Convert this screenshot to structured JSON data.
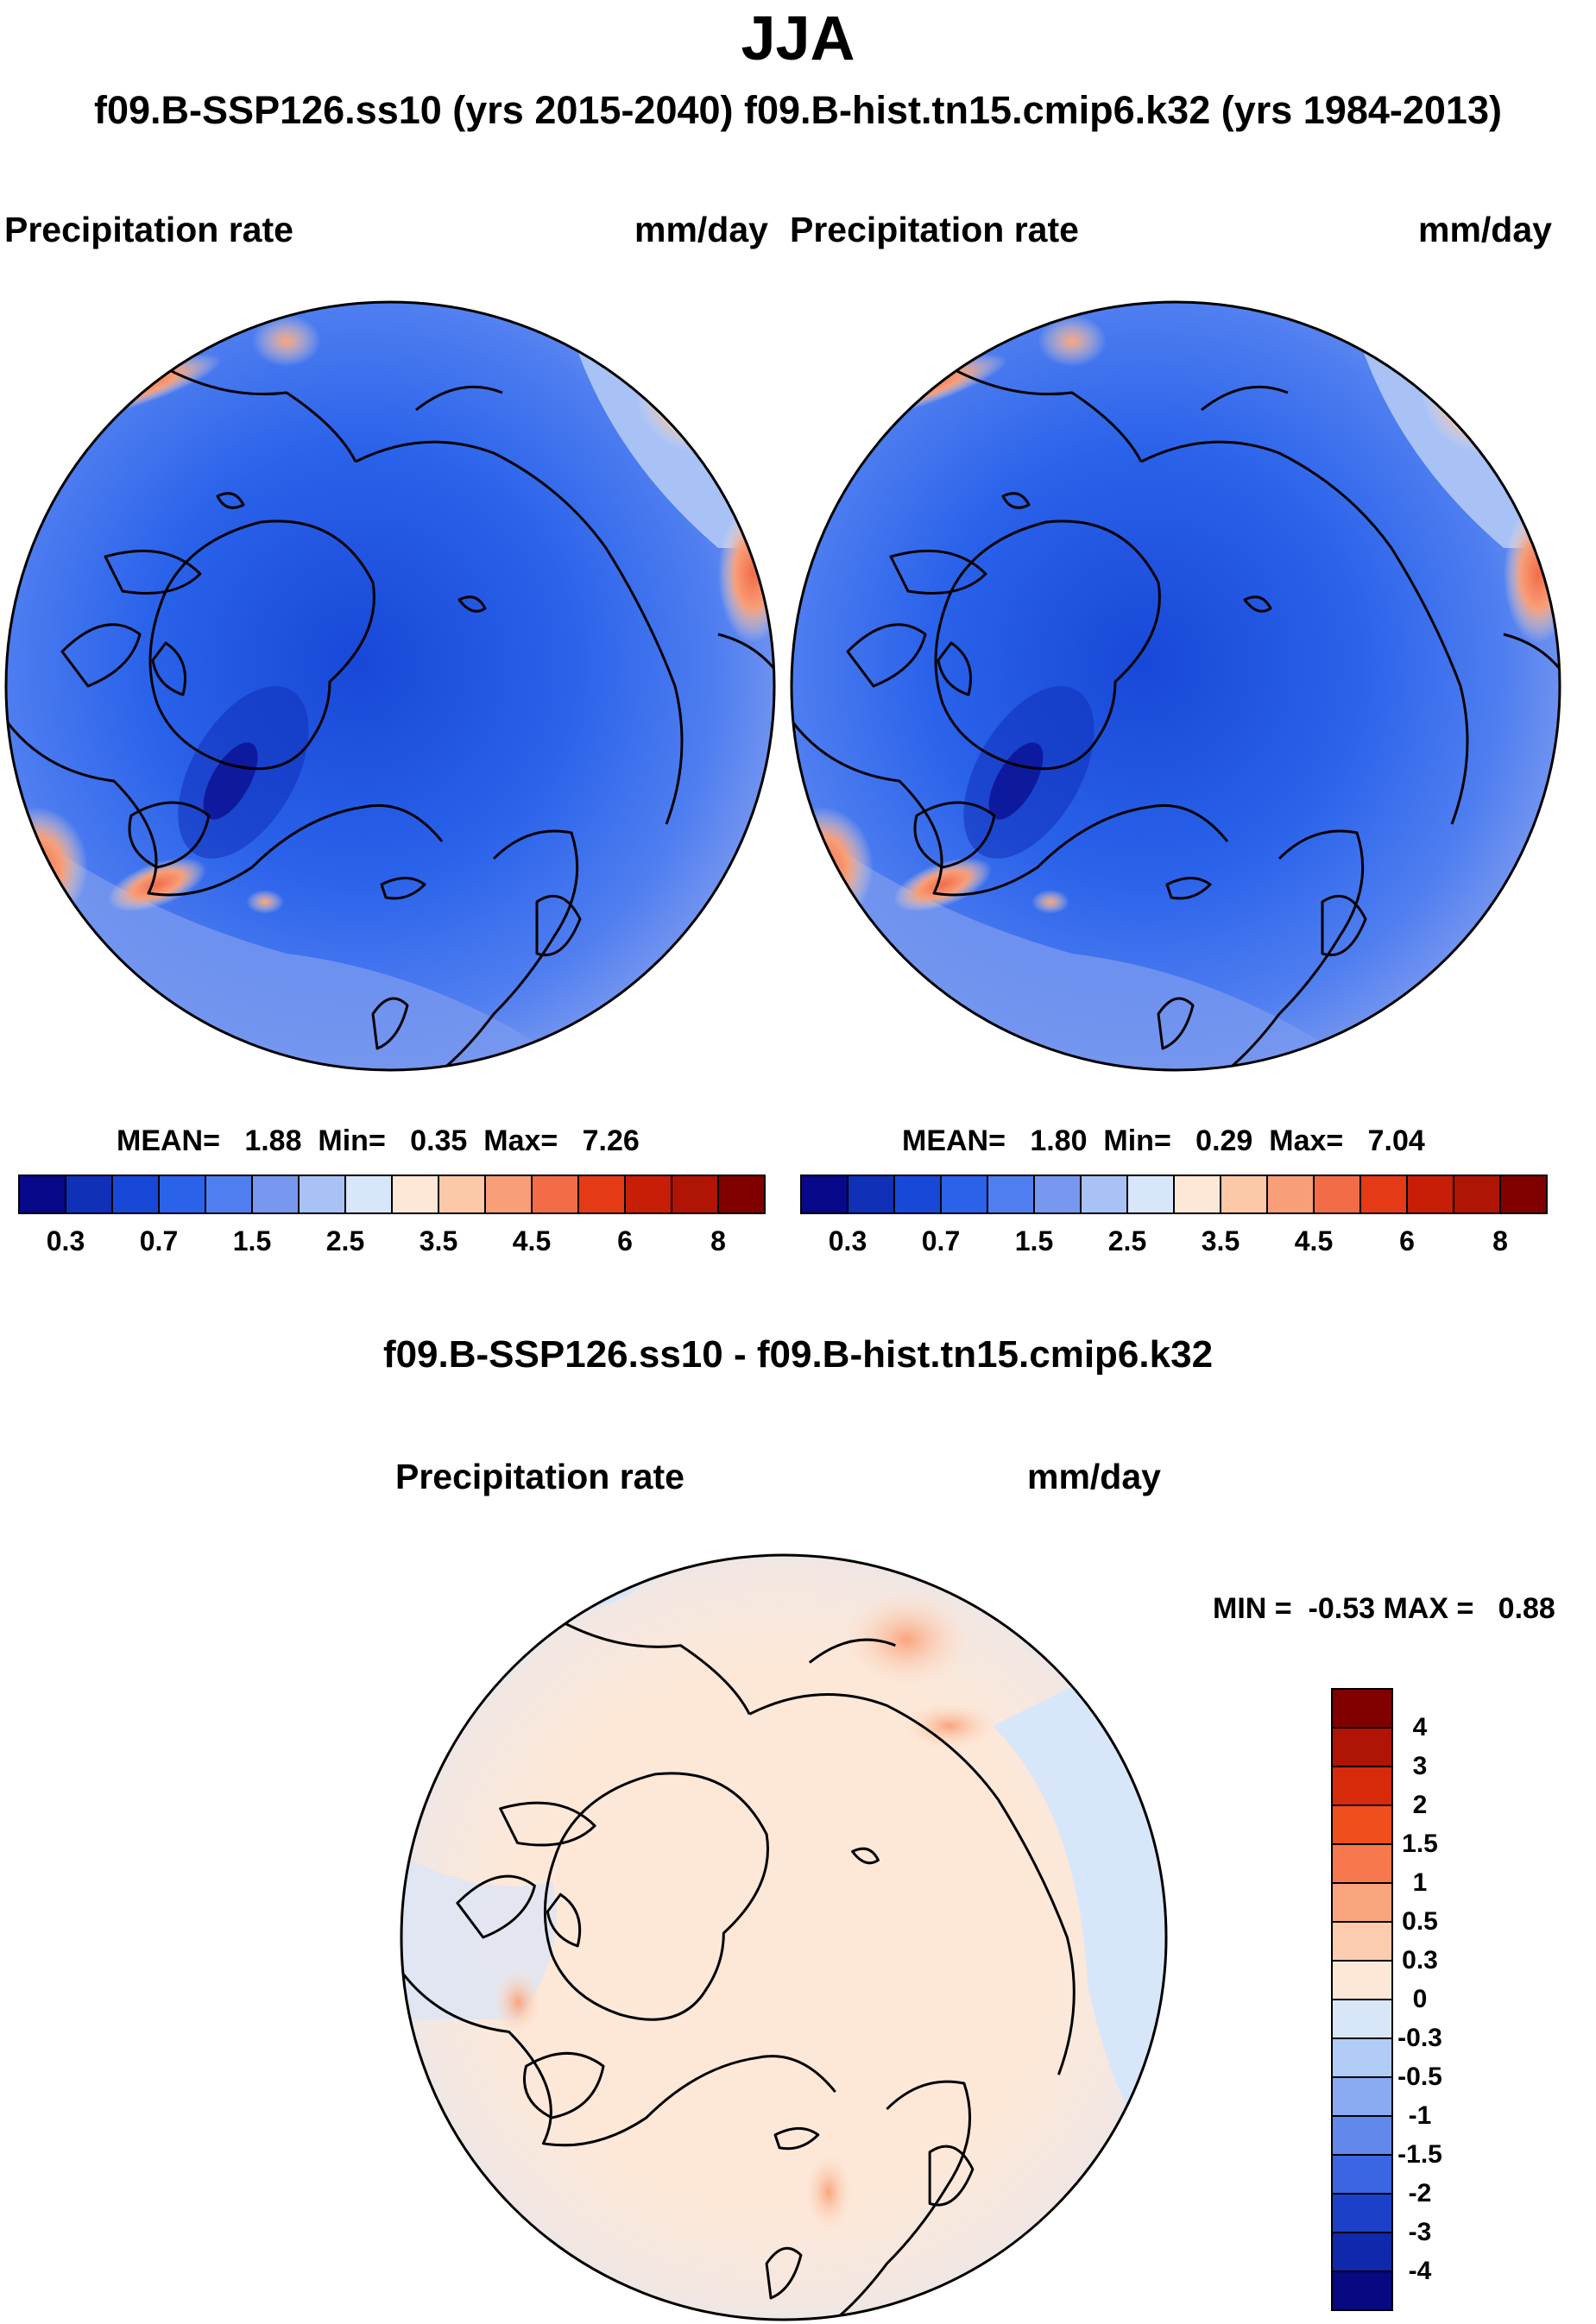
{
  "title": "JJA",
  "subtitle": "f09.B-SSP126.ss10 (yrs 2015-2040)  f09.B-hist.tn15.cmip6.k32 (yrs 1984-2013)",
  "colors": {
    "seq": [
      "#08088a",
      "#1030b8",
      "#1848d8",
      "#2a62ea",
      "#4f7ef0",
      "#7898ef",
      "#a8c2f6",
      "#d8e6fa",
      "#fde8d8",
      "#fbc8a8",
      "#f89e78",
      "#f26c48",
      "#e53a16",
      "#c81e08",
      "#b01404",
      "#800000"
    ],
    "diff": [
      "#800000",
      "#b01404",
      "#d62a0a",
      "#f04e1c",
      "#f6784c",
      "#f9a47c",
      "#fbccae",
      "#fde8d8",
      "#d8e6fa",
      "#b2ccf8",
      "#8aaaf2",
      "#6288ec",
      "#3a66e4",
      "#1c40c8",
      "#1028ac",
      "#080880"
    ],
    "ocean_low": "#2a62ea",
    "coast": "#000000"
  },
  "chart_data": [
    {
      "type": "polar-map",
      "panel": "left",
      "field_label": "Precipitation rate",
      "units": "mm/day",
      "stats": {
        "mean_label": "MEAN=",
        "mean": "1.88",
        "min_label": "Min=",
        "min": "0.35",
        "max_label": "Max=",
        "max": "7.26"
      },
      "colorbar_levels": [
        "0.3",
        "0.7",
        "1.5",
        "2.5",
        "3.5",
        "4.5",
        "6",
        "8"
      ]
    },
    {
      "type": "polar-map",
      "panel": "right",
      "field_label": "Precipitation rate",
      "units": "mm/day",
      "stats": {
        "mean_label": "MEAN=",
        "mean": "1.80",
        "min_label": "Min=",
        "min": "0.29",
        "max_label": "Max=",
        "max": "7.04"
      },
      "colorbar_levels": [
        "0.3",
        "0.7",
        "1.5",
        "2.5",
        "3.5",
        "4.5",
        "6",
        "8"
      ]
    },
    {
      "type": "polar-map",
      "panel": "difference",
      "title": "f09.B-SSP126.ss10 - f09.B-hist.tn15.cmip6.k32",
      "field_label": "Precipitation rate",
      "units": "mm/day",
      "minmax_text": "MIN =  -0.53 MAX =   0.88",
      "colorbar_levels": [
        "4",
        "3",
        "2",
        "1.5",
        "1",
        "0.5",
        "0.3",
        "0",
        "-0.3",
        "-0.5",
        "-1",
        "-1.5",
        "-2",
        "-3",
        "-4"
      ]
    }
  ]
}
